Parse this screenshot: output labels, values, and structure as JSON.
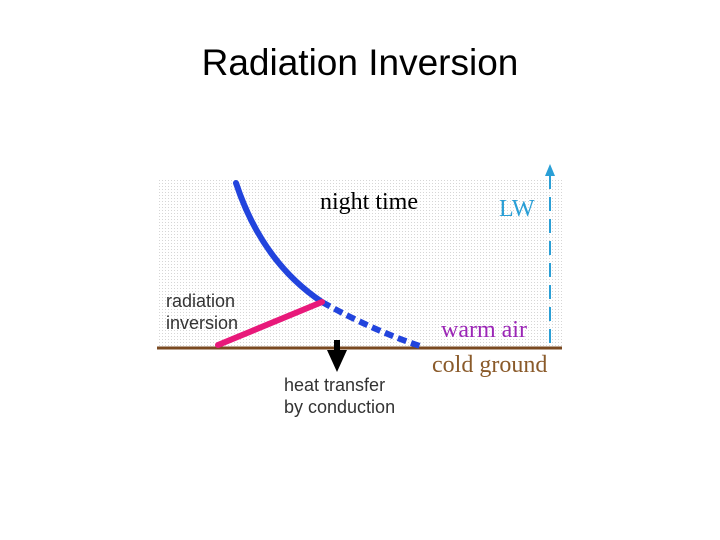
{
  "slide": {
    "title": "Radiation Inversion"
  },
  "diagram": {
    "labels": {
      "night_time": "night time",
      "lw": "LW",
      "radiation_line1": "radiation",
      "radiation_line2": "inversion",
      "warm_air": "warm air",
      "cold_ground": "cold ground",
      "heat_line1": "heat transfer",
      "heat_line2": "by conduction"
    },
    "colors": {
      "temperature_profile": "#2244dd",
      "inversion_layer": "#e8197a",
      "longwave_arrow": "#2a9fd6",
      "ground_line": "#7a4a22",
      "warm_air_text": "#9b26b6",
      "cold_ground_text": "#8a5a2a",
      "lw_text": "#2a9fd6",
      "background_dots": "#dcdcdc"
    },
    "icons": {
      "heat_arrow": "down-arrow-icon",
      "lw_arrow": "up-arrow-icon"
    }
  }
}
